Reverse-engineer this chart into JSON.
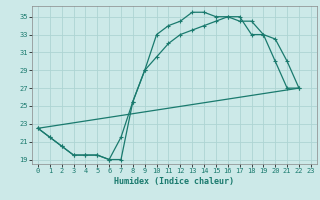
{
  "xlabel": "Humidex (Indice chaleur)",
  "bg_color": "#cce9e8",
  "grid_color": "#aed4d3",
  "line_color": "#1a7a6e",
  "xlim": [
    -0.5,
    23.5
  ],
  "ylim": [
    18.5,
    36.2
  ],
  "xticks": [
    0,
    1,
    2,
    3,
    4,
    5,
    6,
    7,
    8,
    9,
    10,
    11,
    12,
    13,
    14,
    15,
    16,
    17,
    18,
    19,
    20,
    21,
    22,
    23
  ],
  "yticks": [
    19,
    21,
    23,
    25,
    27,
    29,
    31,
    33,
    35
  ],
  "line1_x": [
    0,
    1,
    2,
    3,
    4,
    5,
    6,
    7,
    8,
    9,
    10,
    11,
    12,
    13,
    14,
    15,
    16,
    17,
    18,
    19,
    20,
    21,
    22
  ],
  "line1_y": [
    22.5,
    21.5,
    20.5,
    19.5,
    19.5,
    19.5,
    19.0,
    19.0,
    25.5,
    29.0,
    33.0,
    34.0,
    34.5,
    35.5,
    35.5,
    35.0,
    35.0,
    34.5,
    34.5,
    33.0,
    30.0,
    27.0,
    27.0
  ],
  "line2_x": [
    0,
    1,
    2,
    3,
    4,
    5,
    6,
    7,
    8,
    9,
    10,
    11,
    12,
    13,
    14,
    15,
    16,
    17,
    18,
    19,
    20,
    21,
    22
  ],
  "line2_y": [
    22.5,
    21.5,
    20.5,
    19.5,
    19.5,
    19.5,
    19.0,
    21.5,
    25.5,
    29.0,
    30.5,
    32.0,
    33.0,
    33.5,
    34.0,
    34.5,
    35.0,
    35.0,
    33.0,
    33.0,
    32.5,
    30.0,
    27.0
  ],
  "line3_x": [
    0,
    22
  ],
  "line3_y": [
    22.5,
    27.0
  ]
}
